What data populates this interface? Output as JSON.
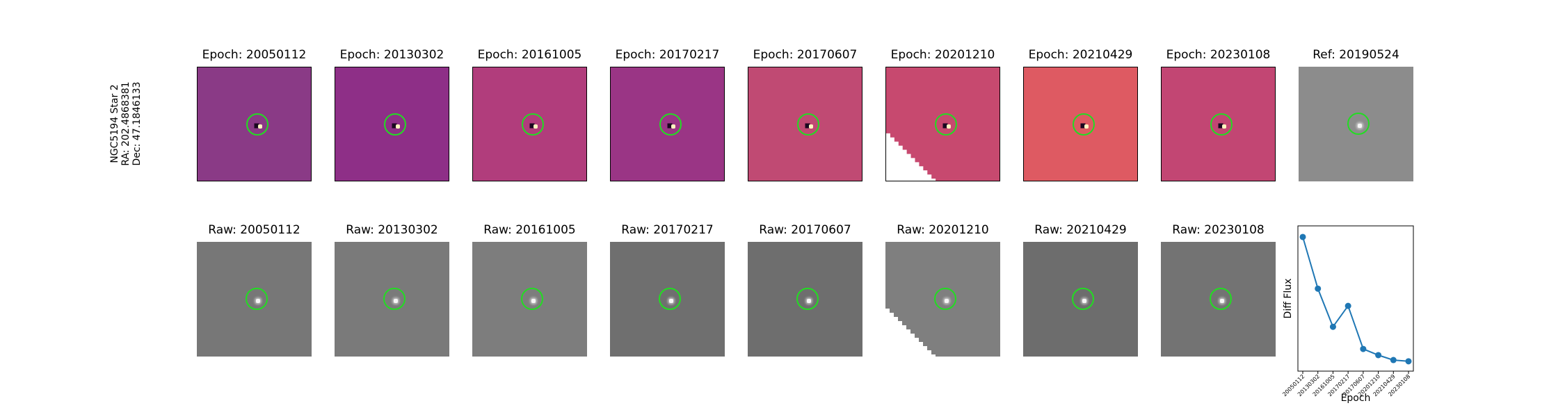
{
  "row_label": {
    "line1": "NGC5194 Star 2",
    "line2": "RA: 202.4868381",
    "line3": "Dec: 47.1846133"
  },
  "diff_panels": [
    {
      "title": "Epoch: 20050112",
      "color": "#8a3a86",
      "blank_corner": false
    },
    {
      "title": "Epoch: 20130302",
      "color": "#8e2f87",
      "blank_corner": false
    },
    {
      "title": "Epoch: 20161005",
      "color": "#b13d7c",
      "blank_corner": false
    },
    {
      "title": "Epoch: 20170217",
      "color": "#9a3585",
      "blank_corner": false
    },
    {
      "title": "Epoch: 20170607",
      "color": "#c04a73",
      "blank_corner": false
    },
    {
      "title": "Epoch: 20201210",
      "color": "#c7496f",
      "blank_corner": true
    },
    {
      "title": "Epoch: 20210429",
      "color": "#de5a62",
      "blank_corner": false
    },
    {
      "title": "Epoch: 20230108",
      "color": "#c24673",
      "blank_corner": false
    }
  ],
  "ref_panel": {
    "title": "Ref: 20190524",
    "color": "#8c8c8c"
  },
  "raw_panels": [
    {
      "title": "Raw: 20050112",
      "color": "#777777",
      "blank_corner": false
    },
    {
      "title": "Raw: 20130302",
      "color": "#7a7a7a",
      "blank_corner": false
    },
    {
      "title": "Raw: 20161005",
      "color": "#7d7d7d",
      "blank_corner": false
    },
    {
      "title": "Raw: 20170217",
      "color": "#6f6f6f",
      "blank_corner": false
    },
    {
      "title": "Raw: 20170607",
      "color": "#6e6e6e",
      "blank_corner": false
    },
    {
      "title": "Raw: 20201210",
      "color": "#7f7f7f",
      "blank_corner": true
    },
    {
      "title": "Raw: 20210429",
      "color": "#6d6d6d",
      "blank_corner": false
    },
    {
      "title": "Raw: 20230108",
      "color": "#737373",
      "blank_corner": false
    }
  ],
  "colors": {
    "marker_circle": "#22dd22",
    "line": "#1f77b4",
    "blank": "#ffffff"
  },
  "chart_data": {
    "type": "line",
    "categories": [
      "20050112",
      "20130302",
      "20161005",
      "20170217",
      "20170607",
      "20201210",
      "20210429",
      "20230108"
    ],
    "values": [
      1.0,
      0.58,
      0.27,
      0.44,
      0.09,
      0.04,
      0.0,
      -0.01
    ],
    "xlabel": "Epoch",
    "ylabel": "Diff Flux",
    "ylim": [
      -0.09,
      1.09
    ],
    "grid": false,
    "ytick_labels": false
  }
}
